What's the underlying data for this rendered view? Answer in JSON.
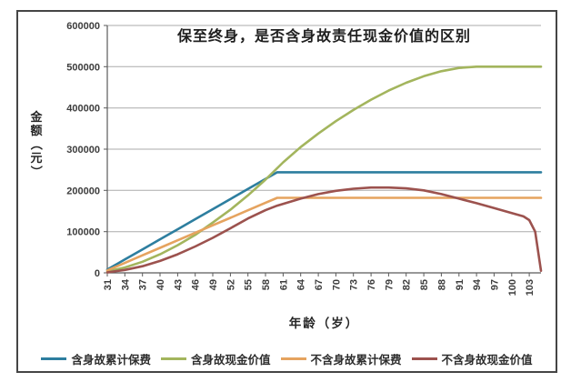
{
  "frame": {
    "background": "#ffffff",
    "border_color": "#454545"
  },
  "chart_data": {
    "type": "line",
    "title": "保至终身，是否含身故责任现金价值的区别",
    "xlabel": "年龄（岁）",
    "ylabel": "金额（元）",
    "xlim": [
      31,
      105
    ],
    "ylim": [
      0,
      600000
    ],
    "x_ticks": [
      31,
      34,
      37,
      40,
      43,
      46,
      49,
      52,
      55,
      58,
      61,
      64,
      67,
      70,
      73,
      76,
      79,
      82,
      85,
      88,
      91,
      94,
      97,
      100,
      103
    ],
    "y_ticks": [
      0,
      100000,
      200000,
      300000,
      400000,
      500000,
      600000
    ],
    "grid": "horizontal",
    "legend_position": "bottom",
    "series": [
      {
        "name": "含身故累计保费",
        "color": "#2D7E9F",
        "points": [
          [
            31,
            8000
          ],
          [
            34,
            32500
          ],
          [
            37,
            57000
          ],
          [
            40,
            81300
          ],
          [
            43,
            105700
          ],
          [
            46,
            130100
          ],
          [
            49,
            154500
          ],
          [
            52,
            179000
          ],
          [
            55,
            203300
          ],
          [
            58,
            227700
          ],
          [
            60,
            244000
          ],
          [
            105,
            244000
          ]
        ]
      },
      {
        "name": "含身故现金价值",
        "color": "#A3B55D",
        "points": [
          [
            31,
            3000
          ],
          [
            34,
            13000
          ],
          [
            37,
            27000
          ],
          [
            40,
            45000
          ],
          [
            43,
            67000
          ],
          [
            46,
            92000
          ],
          [
            49,
            122000
          ],
          [
            52,
            153000
          ],
          [
            55,
            188000
          ],
          [
            58,
            226000
          ],
          [
            61,
            268000
          ],
          [
            64,
            305000
          ],
          [
            67,
            338000
          ],
          [
            70,
            368000
          ],
          [
            73,
            395000
          ],
          [
            76,
            420000
          ],
          [
            79,
            442000
          ],
          [
            82,
            461000
          ],
          [
            85,
            477000
          ],
          [
            88,
            489000
          ],
          [
            91,
            497000
          ],
          [
            94,
            500000
          ],
          [
            105,
            500000
          ]
        ]
      },
      {
        "name": "不含身故累计保费",
        "color": "#E5A35F",
        "points": [
          [
            31,
            6000
          ],
          [
            34,
            24000
          ],
          [
            37,
            42500
          ],
          [
            40,
            60700
          ],
          [
            43,
            78900
          ],
          [
            46,
            97000
          ],
          [
            49,
            115300
          ],
          [
            52,
            133500
          ],
          [
            55,
            151700
          ],
          [
            58,
            170000
          ],
          [
            60,
            182000
          ],
          [
            105,
            182000
          ]
        ]
      },
      {
        "name": "不含身故现金价值",
        "color": "#9C524E",
        "points": [
          [
            31,
            1000
          ],
          [
            34,
            7000
          ],
          [
            37,
            16000
          ],
          [
            40,
            29000
          ],
          [
            43,
            45000
          ],
          [
            46,
            64000
          ],
          [
            49,
            85000
          ],
          [
            52,
            108000
          ],
          [
            55,
            132000
          ],
          [
            58,
            152000
          ],
          [
            60,
            163000
          ],
          [
            64,
            180000
          ],
          [
            67,
            191000
          ],
          [
            70,
            199000
          ],
          [
            73,
            204000
          ],
          [
            76,
            207000
          ],
          [
            79,
            207000
          ],
          [
            82,
            205000
          ],
          [
            85,
            200000
          ],
          [
            88,
            191000
          ],
          [
            91,
            180000
          ],
          [
            94,
            169000
          ],
          [
            97,
            157000
          ],
          [
            100,
            145000
          ],
          [
            102,
            137000
          ],
          [
            103,
            128000
          ],
          [
            104,
            100000
          ],
          [
            105,
            5000
          ]
        ]
      }
    ]
  }
}
